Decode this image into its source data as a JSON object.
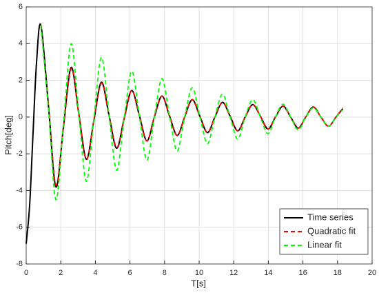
{
  "chart_data": {
    "type": "line",
    "x_label": "T[s]",
    "y_label": "Pitch[deg]",
    "x": [
      0,
      0.2,
      0.4,
      0.6,
      0.85,
      1.29,
      1.72,
      2.16,
      2.6,
      3.04,
      3.48,
      3.91,
      4.35,
      4.79,
      5.23,
      5.66,
      6.1,
      6.54,
      6.98,
      7.41,
      7.85,
      8.29,
      8.73,
      9.16,
      9.6,
      10.04,
      10.48,
      10.91,
      11.35,
      11.79,
      12.23,
      12.66,
      13.1,
      13.54,
      13.98,
      14.41,
      14.85,
      15.29,
      15.73,
      16.16,
      16.6,
      17.04,
      17.48,
      17.91,
      18.3
    ],
    "series": [
      {
        "name": "Time series",
        "color": "#000000",
        "dash": false,
        "values": [
          -6.9,
          -4.8,
          -0.8,
          3.0,
          5.0,
          0.6,
          -3.8,
          -0.5,
          2.7,
          0.2,
          -2.3,
          -0.2,
          1.9,
          0.1,
          -1.7,
          -0.1,
          1.45,
          0.1,
          -1.3,
          0,
          1.15,
          0.05,
          -1.0,
          0,
          0.95,
          0.05,
          -0.85,
          0,
          0.8,
          0.05,
          -0.75,
          0,
          0.68,
          0.05,
          -0.65,
          0,
          0.6,
          0,
          -0.6,
          0,
          0.55,
          0,
          -0.5,
          0,
          0.45
        ]
      },
      {
        "name": "Quadratic fit",
        "color": "#ff0000",
        "dash": true,
        "values": [
          null,
          null,
          null,
          null,
          5.0,
          0.6,
          -3.7,
          -0.5,
          2.65,
          0.2,
          -2.3,
          -0.2,
          1.85,
          0.1,
          -1.65,
          -0.1,
          1.45,
          0.1,
          -1.3,
          0,
          1.15,
          0.05,
          -1.0,
          0,
          0.95,
          0.05,
          -0.85,
          0,
          0.8,
          0.05,
          -0.75,
          0,
          0.68,
          0.05,
          -0.65,
          0,
          0.6,
          0,
          -0.6,
          0,
          0.55,
          0,
          -0.5,
          0,
          0.5
        ]
      },
      {
        "name": "Linear fit",
        "color": "#00ff00",
        "dash": true,
        "values": [
          null,
          null,
          null,
          null,
          5.0,
          0.4,
          -4.5,
          -0.3,
          4.0,
          0.2,
          -3.5,
          -0.1,
          3.25,
          0.1,
          -2.9,
          -0.1,
          2.5,
          0.1,
          -2.35,
          0,
          2.1,
          0.05,
          -1.85,
          0,
          1.6,
          0.05,
          -1.45,
          0,
          1.25,
          0,
          -1.2,
          0,
          0.95,
          0,
          -0.9,
          0,
          0.7,
          0,
          -0.7,
          0,
          0.5,
          0,
          -0.5,
          0,
          0.4
        ]
      }
    ],
    "xlim": [
      0,
      20
    ],
    "xticks": [
      0,
      2,
      4,
      6,
      8,
      10,
      12,
      14,
      16,
      18,
      20
    ],
    "ylim": [
      -8,
      6
    ],
    "yticks": [
      -8,
      -6,
      -4,
      -2,
      0,
      2,
      4,
      6
    ],
    "grid": true,
    "legend": "southeast"
  }
}
